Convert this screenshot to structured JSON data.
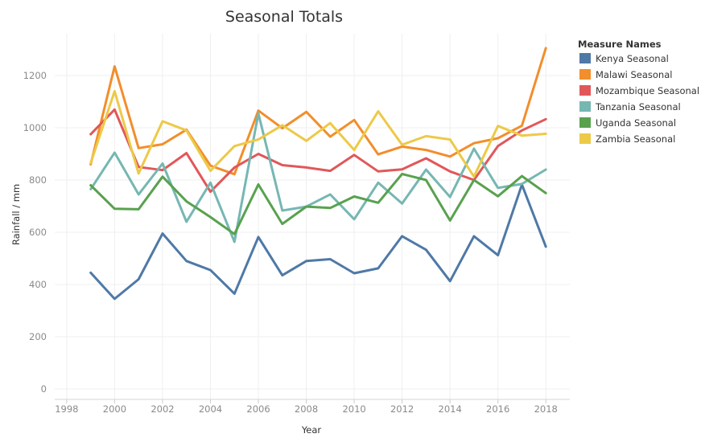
{
  "chart_data": {
    "type": "line",
    "title": "Seasonal Totals",
    "xlabel": "Year",
    "ylabel": "Rainfall / mm",
    "xlim": [
      1997.5,
      2019
    ],
    "ylim": [
      -40,
      1360
    ],
    "x_ticks": [
      1998,
      2000,
      2002,
      2004,
      2006,
      2008,
      2010,
      2012,
      2014,
      2016,
      2018
    ],
    "y_ticks": [
      0,
      200,
      400,
      600,
      800,
      1000,
      1200
    ],
    "grid": true,
    "legend": {
      "title": "Measure Names",
      "placement": "right"
    },
    "x": [
      1999,
      2000,
      2001,
      2002,
      2003,
      2004,
      2005,
      2006,
      2007,
      2008,
      2009,
      2010,
      2011,
      2012,
      2013,
      2014,
      2015,
      2016,
      2017,
      2018
    ],
    "series": [
      {
        "name": "Kenya Seasonal",
        "color": "#4e79a7",
        "values": [
          445,
          345,
          420,
          595,
          490,
          455,
          365,
          582,
          435,
          490,
          497,
          443,
          462,
          585,
          533,
          413,
          585,
          512,
          782,
          545
        ]
      },
      {
        "name": "Malawi Seasonal",
        "color": "#f28e2b",
        "values": [
          860,
          1235,
          922,
          937,
          993,
          855,
          822,
          1066,
          998,
          1061,
          966,
          1030,
          898,
          928,
          915,
          890,
          941,
          960,
          1008,
          1305
        ]
      },
      {
        "name": "Mozambique Seasonal",
        "color": "#e15759",
        "values": [
          975,
          1070,
          850,
          838,
          903,
          755,
          848,
          900,
          857,
          848,
          835,
          896,
          833,
          841,
          883,
          833,
          800,
          930,
          990,
          1033
        ]
      },
      {
        "name": "Tanzania Seasonal",
        "color": "#76b7b2",
        "values": [
          765,
          905,
          745,
          863,
          640,
          790,
          563,
          1055,
          683,
          698,
          745,
          650,
          790,
          710,
          840,
          735,
          920,
          770,
          785,
          840
        ]
      },
      {
        "name": "Uganda Seasonal",
        "color": "#59a14f",
        "values": [
          780,
          690,
          688,
          813,
          718,
          658,
          593,
          783,
          632,
          698,
          693,
          737,
          713,
          823,
          800,
          645,
          800,
          738,
          815,
          750
        ]
      },
      {
        "name": "Zambia Seasonal",
        "color": "#edc948",
        "values": [
          865,
          1140,
          825,
          1025,
          990,
          835,
          930,
          955,
          1010,
          950,
          1018,
          915,
          1063,
          935,
          968,
          955,
          813,
          1007,
          970,
          977
        ]
      }
    ]
  }
}
